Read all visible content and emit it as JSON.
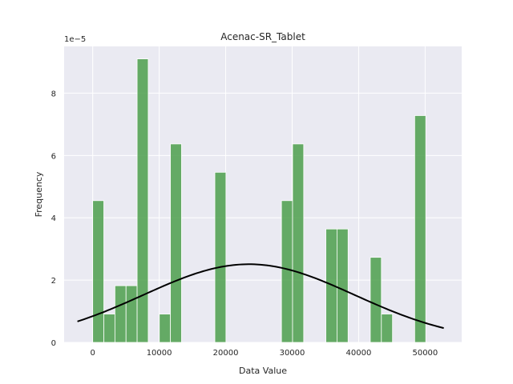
{
  "chart_data": {
    "type": "bar",
    "title": "Acenac-SR_Tablet",
    "xlabel": "Data Value",
    "ylabel": "Frequency",
    "y_scale_label": "1e−5",
    "xlim": [
      -4300,
      55500
    ],
    "ylim": [
      0,
      9.5
    ],
    "x_ticks": [
      0,
      10000,
      20000,
      30000,
      40000,
      50000
    ],
    "x_tick_labels": [
      "0",
      "10000",
      "20000",
      "30000",
      "40000",
      "50000"
    ],
    "y_ticks": [
      0,
      2,
      4,
      6,
      8
    ],
    "y_tick_labels": [
      "0",
      "2",
      "4",
      "6",
      "8"
    ],
    "grid": true,
    "bar_color": "#4c9f4c",
    "bins": [
      {
        "x0": 0,
        "x1": 1670,
        "value": 4.55
      },
      {
        "x0": 1670,
        "x1": 3340,
        "value": 0.91
      },
      {
        "x0": 3340,
        "x1": 5010,
        "value": 1.82
      },
      {
        "x0": 5010,
        "x1": 6680,
        "value": 1.82
      },
      {
        "x0": 6680,
        "x1": 8350,
        "value": 9.1
      },
      {
        "x0": 8350,
        "x1": 10020,
        "value": 0
      },
      {
        "x0": 10020,
        "x1": 11690,
        "value": 0.91
      },
      {
        "x0": 11690,
        "x1": 13360,
        "value": 6.37
      },
      {
        "x0": 13360,
        "x1": 15030,
        "value": 0
      },
      {
        "x0": 15030,
        "x1": 16700,
        "value": 0
      },
      {
        "x0": 16700,
        "x1": 18370,
        "value": 0
      },
      {
        "x0": 18370,
        "x1": 20040,
        "value": 5.46
      },
      {
        "x0": 20040,
        "x1": 21710,
        "value": 0
      },
      {
        "x0": 21710,
        "x1": 23380,
        "value": 0
      },
      {
        "x0": 23380,
        "x1": 25050,
        "value": 0
      },
      {
        "x0": 25050,
        "x1": 26720,
        "value": 0
      },
      {
        "x0": 26720,
        "x1": 28390,
        "value": 0
      },
      {
        "x0": 28390,
        "x1": 30060,
        "value": 4.55
      },
      {
        "x0": 30060,
        "x1": 31730,
        "value": 6.37
      },
      {
        "x0": 31730,
        "x1": 33400,
        "value": 0
      },
      {
        "x0": 33400,
        "x1": 35070,
        "value": 0
      },
      {
        "x0": 35070,
        "x1": 36740,
        "value": 3.64
      },
      {
        "x0": 36740,
        "x1": 38410,
        "value": 3.64
      },
      {
        "x0": 38410,
        "x1": 40080,
        "value": 0
      },
      {
        "x0": 40080,
        "x1": 41750,
        "value": 0
      },
      {
        "x0": 41750,
        "x1": 43420,
        "value": 2.73
      },
      {
        "x0": 43420,
        "x1": 45090,
        "value": 0.91
      },
      {
        "x0": 45090,
        "x1": 46760,
        "value": 0
      },
      {
        "x0": 46760,
        "x1": 48430,
        "value": 0
      },
      {
        "x0": 48430,
        "x1": 50100,
        "value": 7.28
      }
    ],
    "fit_curve": {
      "type": "normal_pdf",
      "color": "#000000",
      "mean": 23500,
      "std": 15900,
      "x_range": [
        -2300,
        52800
      ],
      "scale": 100000.0
    }
  }
}
